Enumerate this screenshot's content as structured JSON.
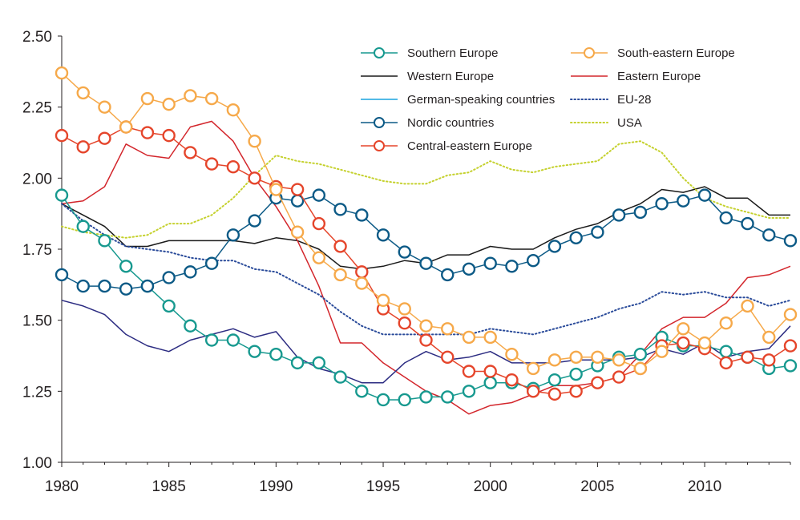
{
  "chart_data": {
    "type": "line",
    "title": "",
    "xlabel": "",
    "ylabel": "",
    "xlim": [
      1980,
      2014
    ],
    "ylim": [
      1.0,
      2.5
    ],
    "x_ticks": [
      "1980",
      "1985",
      "1990",
      "1995",
      "2000",
      "2005",
      "2010"
    ],
    "y_ticks": [
      "1.00",
      "1.25",
      "1.50",
      "1.75",
      "2.00",
      "2.25",
      "2.50"
    ],
    "legend_position": "top-right",
    "x": [
      1980,
      1981,
      1982,
      1983,
      1984,
      1985,
      1986,
      1987,
      1988,
      1989,
      1990,
      1991,
      1992,
      1993,
      1994,
      1995,
      1996,
      1997,
      1998,
      1999,
      2000,
      2001,
      2002,
      2003,
      2004,
      2005,
      2006,
      2007,
      2008,
      2009,
      2010,
      2011,
      2012,
      2013,
      2014
    ],
    "series": [
      {
        "name": "Southern Europe",
        "color": "#17998f",
        "style": "marker",
        "values": [
          1.94,
          1.83,
          1.78,
          1.69,
          1.62,
          1.55,
          1.48,
          1.43,
          1.43,
          1.39,
          1.38,
          1.35,
          1.35,
          1.3,
          1.25,
          1.22,
          1.22,
          1.23,
          1.23,
          1.25,
          1.28,
          1.28,
          1.26,
          1.29,
          1.31,
          1.34,
          1.37,
          1.38,
          1.44,
          1.41,
          1.41,
          1.39,
          1.37,
          1.33,
          1.34
        ]
      },
      {
        "name": "Western Europe",
        "color": "#1a1a1a",
        "style": "line",
        "values": [
          1.91,
          1.87,
          1.83,
          1.76,
          1.76,
          1.78,
          1.78,
          1.78,
          1.78,
          1.77,
          1.79,
          1.78,
          1.75,
          1.69,
          1.68,
          1.69,
          1.71,
          1.7,
          1.73,
          1.73,
          1.76,
          1.75,
          1.75,
          1.79,
          1.82,
          1.84,
          1.88,
          1.91,
          1.96,
          1.95,
          1.97,
          1.93,
          1.93,
          1.87,
          1.87
        ]
      },
      {
        "name": "German-speaking countries",
        "color": "#1aa3df",
        "style": "line",
        "values": [
          null,
          null,
          null,
          null,
          null,
          null,
          null,
          null,
          null,
          null,
          null,
          null,
          null,
          null,
          null,
          null,
          null,
          null,
          null,
          null,
          null,
          null,
          null,
          null,
          null,
          null,
          null,
          null,
          null,
          null,
          null,
          null,
          null,
          null,
          null
        ]
      },
      {
        "name": "Nordic countries",
        "color": "#0c5a86",
        "style": "marker",
        "values": [
          1.66,
          1.62,
          1.62,
          1.61,
          1.62,
          1.65,
          1.67,
          1.7,
          1.8,
          1.85,
          1.93,
          1.92,
          1.94,
          1.89,
          1.87,
          1.8,
          1.74,
          1.7,
          1.66,
          1.68,
          1.7,
          1.69,
          1.71,
          1.76,
          1.79,
          1.81,
          1.87,
          1.88,
          1.91,
          1.92,
          1.94,
          1.86,
          1.84,
          1.8,
          1.78
        ]
      },
      {
        "name": "Central-eastern Europe",
        "color": "#e5452b",
        "style": "marker",
        "values": [
          2.15,
          2.11,
          2.14,
          2.18,
          2.16,
          2.15,
          2.09,
          2.05,
          2.04,
          2.0,
          1.97,
          1.96,
          1.84,
          1.76,
          1.67,
          1.54,
          1.49,
          1.43,
          1.37,
          1.32,
          1.32,
          1.29,
          1.25,
          1.24,
          1.25,
          1.28,
          1.3,
          1.33,
          1.41,
          1.42,
          1.4,
          1.35,
          1.37,
          1.36,
          1.41
        ]
      },
      {
        "name": "South-eastern Europe",
        "color": "#f6a94a",
        "style": "marker",
        "values": [
          2.37,
          2.3,
          2.25,
          2.18,
          2.28,
          2.26,
          2.29,
          2.28,
          2.24,
          2.13,
          1.96,
          1.81,
          1.72,
          1.66,
          1.63,
          1.57,
          1.54,
          1.48,
          1.47,
          1.44,
          1.44,
          1.38,
          1.33,
          1.36,
          1.37,
          1.37,
          1.36,
          1.33,
          1.39,
          1.47,
          1.42,
          1.49,
          1.55,
          1.44,
          1.52
        ]
      },
      {
        "name": "Eastern Europe",
        "color": "#d3262c",
        "style": "line",
        "values": [
          1.91,
          1.92,
          1.97,
          2.12,
          2.08,
          2.07,
          2.18,
          2.2,
          2.13,
          2.0,
          1.9,
          1.78,
          1.62,
          1.42,
          1.42,
          1.35,
          1.3,
          1.25,
          1.22,
          1.17,
          1.2,
          1.21,
          1.24,
          1.27,
          1.27,
          1.28,
          1.3,
          1.38,
          1.47,
          1.51,
          1.51,
          1.56,
          1.65,
          1.66,
          1.69
        ]
      },
      {
        "name": "EU-28",
        "color": "#2a4b9a",
        "style": "dotted",
        "values": [
          1.91,
          1.85,
          1.8,
          1.76,
          1.75,
          1.74,
          1.72,
          1.71,
          1.71,
          1.68,
          1.67,
          1.63,
          1.59,
          1.53,
          1.48,
          1.45,
          1.45,
          1.45,
          1.45,
          1.45,
          1.47,
          1.46,
          1.45,
          1.47,
          1.49,
          1.51,
          1.54,
          1.56,
          1.6,
          1.59,
          1.6,
          1.58,
          1.58,
          1.55,
          1.57
        ]
      },
      {
        "name": "USA",
        "color": "#c5d12e",
        "style": "dotted",
        "values": [
          1.83,
          1.81,
          1.8,
          1.79,
          1.8,
          1.84,
          1.84,
          1.87,
          1.93,
          2.01,
          2.08,
          2.06,
          2.05,
          2.03,
          2.01,
          1.99,
          1.98,
          1.98,
          2.01,
          2.02,
          2.06,
          2.03,
          2.02,
          2.04,
          2.05,
          2.06,
          2.12,
          2.13,
          2.09,
          2.0,
          1.93,
          1.9,
          1.88,
          1.86,
          1.86
        ]
      },
      {
        "name": "",
        "color": "#2c2c82",
        "style": "line",
        "legend": false,
        "values": [
          1.57,
          1.55,
          1.52,
          1.45,
          1.41,
          1.39,
          1.43,
          1.45,
          1.47,
          1.44,
          1.46,
          1.37,
          1.33,
          1.31,
          1.28,
          1.28,
          1.35,
          1.39,
          1.36,
          1.37,
          1.39,
          1.35,
          1.35,
          1.35,
          1.36,
          1.36,
          1.36,
          1.37,
          1.4,
          1.38,
          1.42,
          1.37,
          1.39,
          1.4,
          1.48
        ]
      }
    ]
  }
}
